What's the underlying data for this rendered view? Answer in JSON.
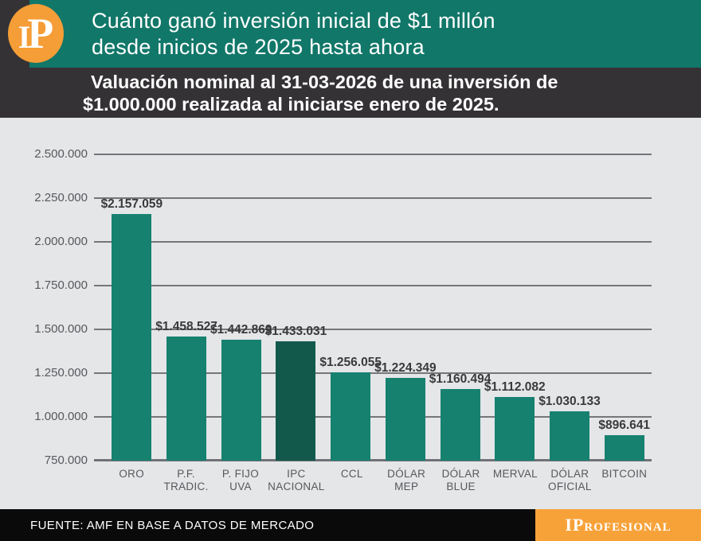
{
  "header": {
    "logo_text_i": "I",
    "logo_text_p": "P",
    "title_line1": "Cuánto ganó inversión inicial de $1 millón",
    "title_line2": "desde inicios de 2025 hasta ahora"
  },
  "subtitle": {
    "line1": "Valuación nominal al 31-03-2026 de una inversión de",
    "line2": "$1.000.000 realizada al iniciarse enero de 2025."
  },
  "footer": {
    "source": "FUENTE: AMF EN BASE A DATOS DE MERCADO",
    "brand": "IProfesional"
  },
  "colors": {
    "banner_green": "#117769",
    "dark_band": "#353236",
    "logo_orange": "#F59D36",
    "footer_orange": "#F7A239",
    "footer_black": "#0A0A0A",
    "chart_bg": "#E4E6E8",
    "bar_teal": "#178170",
    "bar_highlight": "#13594B",
    "grid_gray": "#75767A",
    "axis_text_gray": "#56585B",
    "value_label_gray": "#3A3A3C"
  },
  "chart_data": {
    "type": "bar",
    "title": "Cuánto ganó inversión inicial de $1 millón desde inicios de 2025 hasta ahora",
    "subtitle": "Valuación nominal al 31-03-2026 de una inversión de $1.000.000 realizada al iniciarse enero de 2025.",
    "categories": [
      "ORO",
      "P.F. TRADIC.",
      "P. FIJO UVA",
      "IPC NACIONAL",
      "CCL",
      "DÓLAR MEP",
      "DÓLAR BLUE",
      "MERVAL",
      "DÓLAR OFICIAL",
      "BITCOIN"
    ],
    "category_display": [
      "ORO",
      "P.F.\nTRADIC.",
      "P. FIJO\nUVA",
      "IPC\nNACIONAL",
      "CCL",
      "DÓLAR\nMEP",
      "DÓLAR\nBLUE",
      "MERVAL",
      "DÓLAR\nOFICIAL",
      "BITCOIN"
    ],
    "values": [
      2157059,
      1458527,
      1442869,
      1433031,
      1256055,
      1224349,
      1160494,
      1112082,
      1030133,
      896641
    ],
    "value_labels": [
      "$2.157.059",
      "$1.458.527",
      "$1.442.869",
      "$1.433.031",
      "$1.256.055",
      "$1.224.349",
      "$1.160.494",
      "$1.112.082",
      "$1.030.133",
      "$896.641"
    ],
    "highlight_index": 3,
    "highlighted_category": "IPC NACIONAL",
    "xlabel": "",
    "ylabel": "",
    "ylim": [
      750000,
      2500000
    ],
    "y_ticks": [
      {
        "label": "2.500.000",
        "value": 2500000
      },
      {
        "label": "2.250.000",
        "value": 2250000
      },
      {
        "label": "2.000.000",
        "value": 2000000
      },
      {
        "label": "1.750.000",
        "value": 1750000
      },
      {
        "label": "1.500.000",
        "value": 1500000
      },
      {
        "label": "1.250.000",
        "value": 1250000
      },
      {
        "label": "1.000.000",
        "value": 1000000
      },
      {
        "label": "750.000",
        "value": 750000
      }
    ],
    "grid": true,
    "legend": false
  }
}
